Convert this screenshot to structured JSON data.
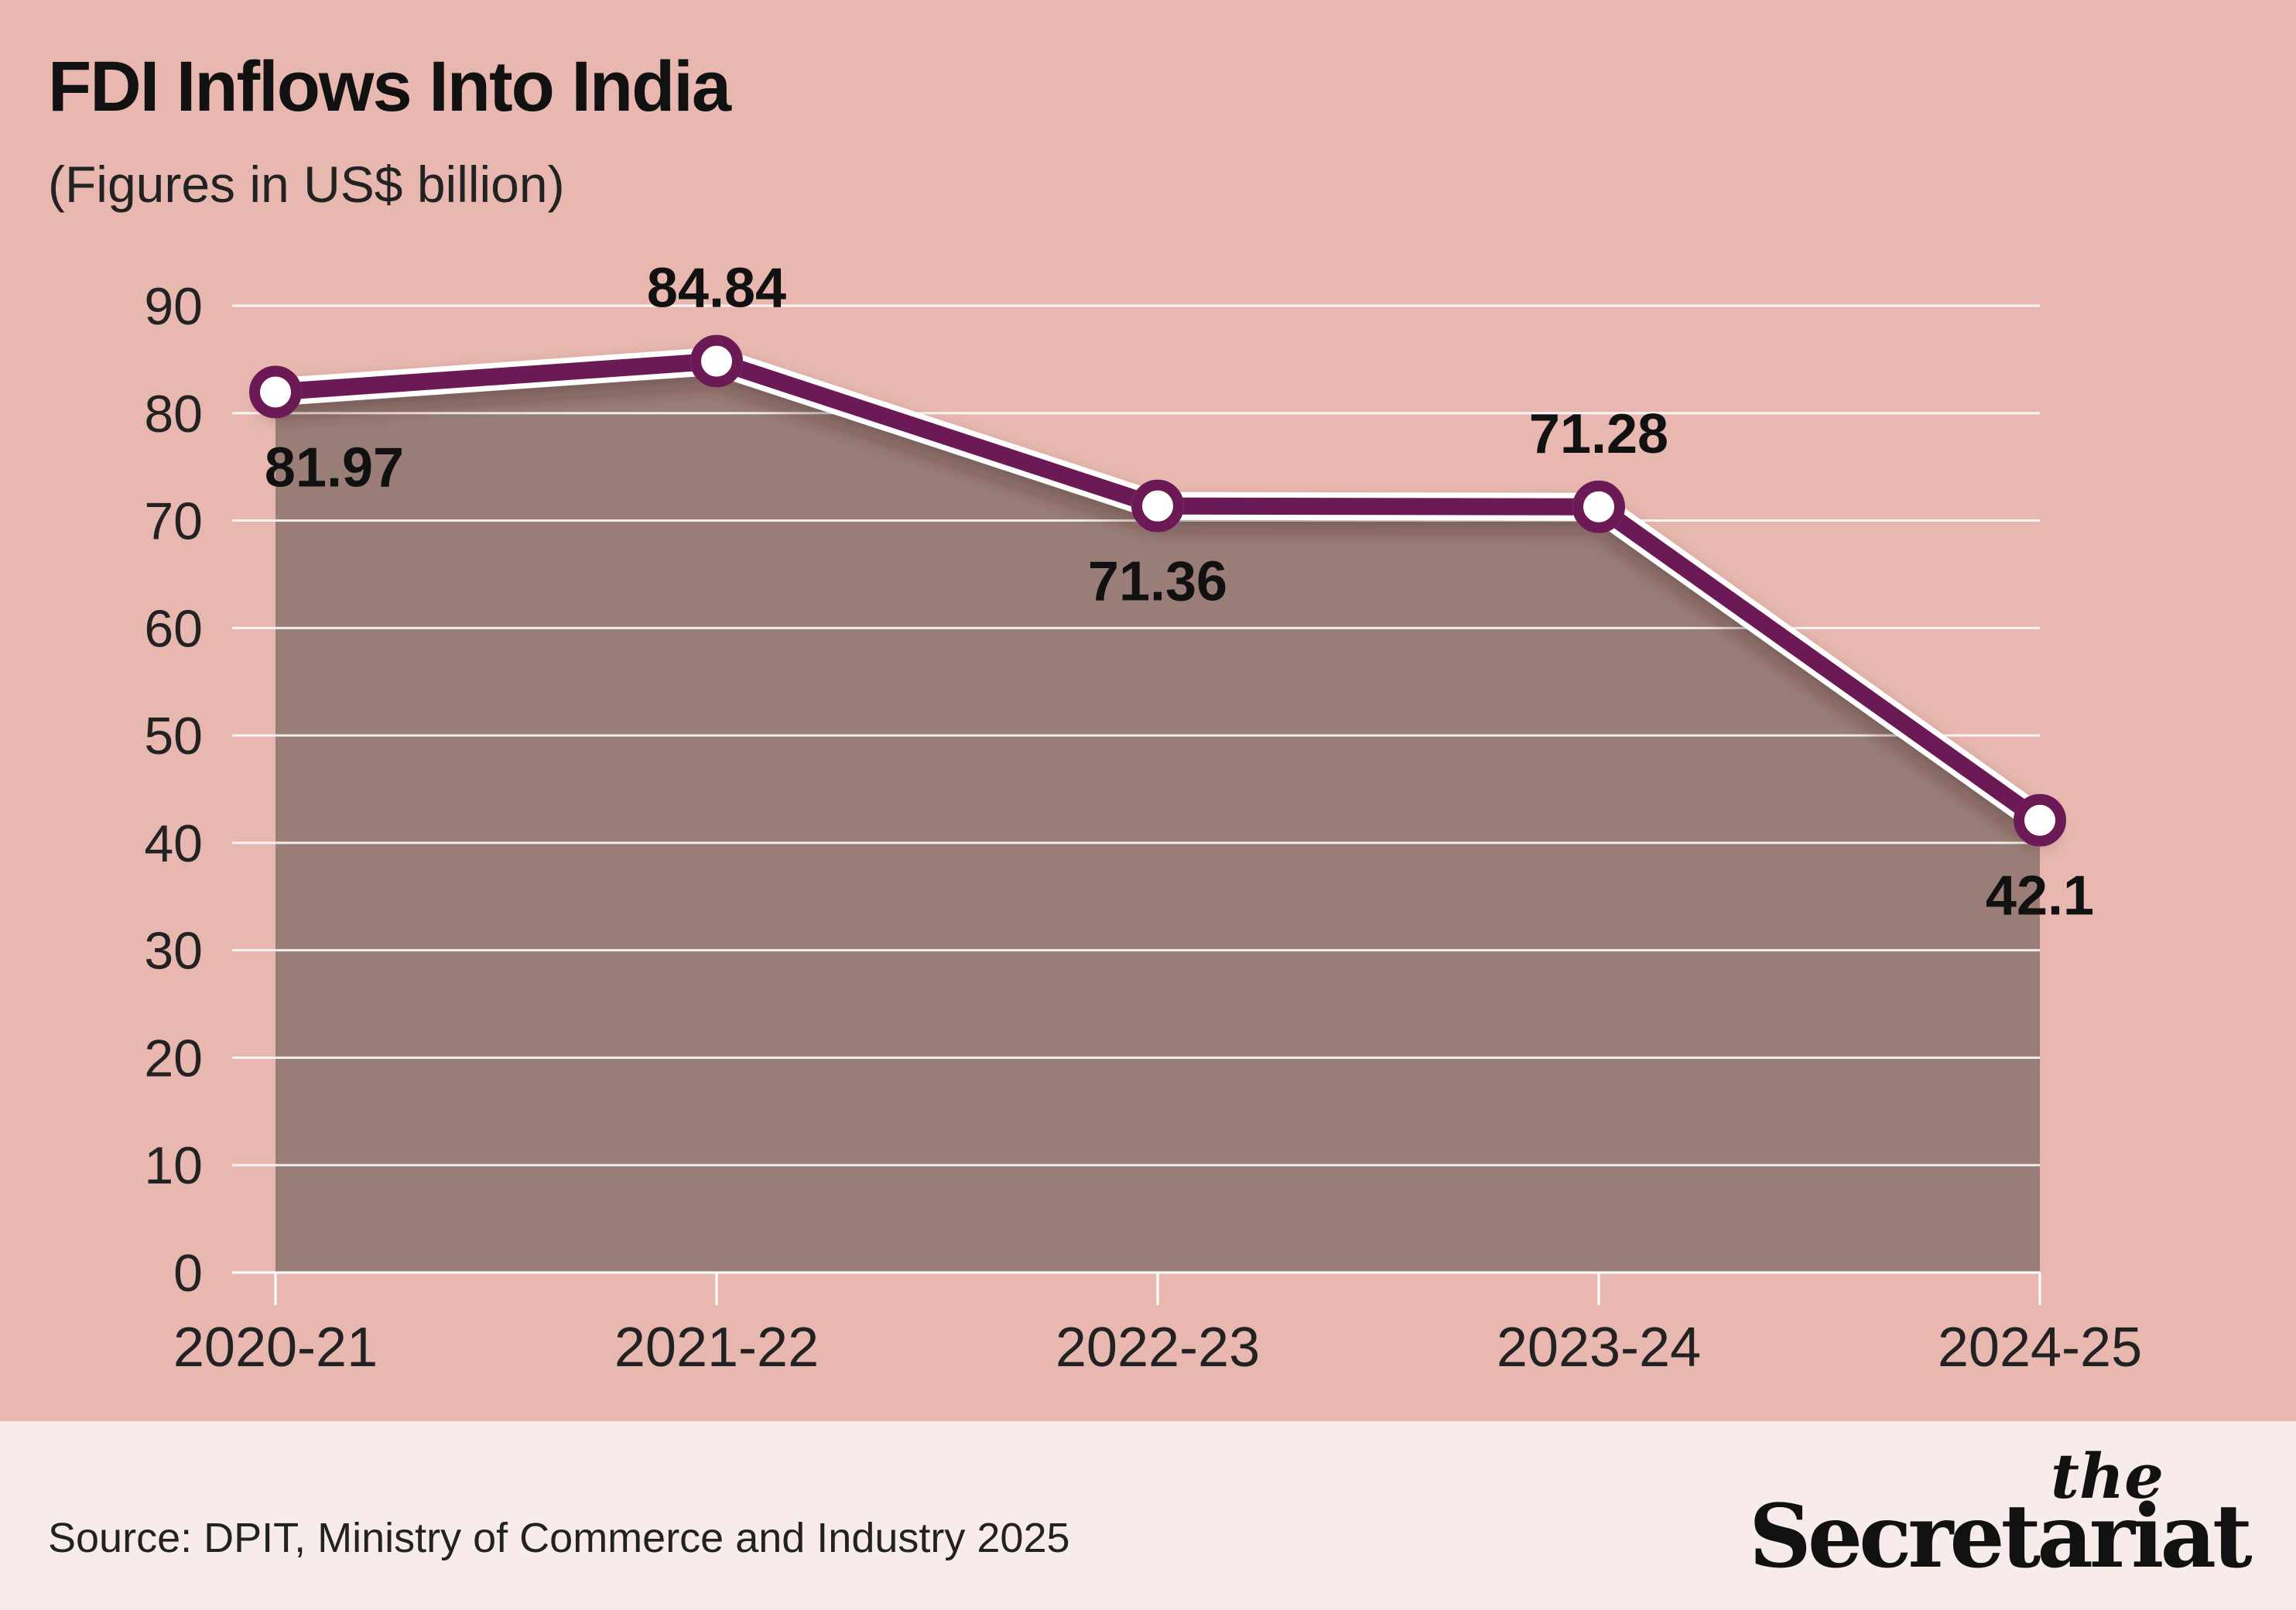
{
  "chart_data": {
    "type": "line",
    "title": "FDI Inflows Into India",
    "subtitle": "(Figures in US$ billion)",
    "categories": [
      "2020-21",
      "2021-22",
      "2022-23",
      "2023-24",
      "2024-25"
    ],
    "values": [
      81.97,
      84.84,
      71.36,
      71.28,
      42.1
    ],
    "data_labels": [
      "81.97",
      "84.84",
      "71.36",
      "71.28",
      "42.1"
    ],
    "y_ticks": [
      0,
      10,
      20,
      30,
      40,
      50,
      60,
      70,
      80,
      90
    ],
    "ylim": [
      0,
      90
    ],
    "grid": true,
    "area_fill": true,
    "colors": {
      "background": "#e8b8b0",
      "area": "#9a7d77",
      "line": "#6b1a55",
      "marker_fill": "#ffffff",
      "gridline": "#ffffff",
      "footer_background": "#f7ecea"
    }
  },
  "footer": {
    "source": "Source: DPIT, Ministry of Commerce and Industry 2025",
    "logo_the": "the",
    "logo_name": "Secretariat"
  }
}
